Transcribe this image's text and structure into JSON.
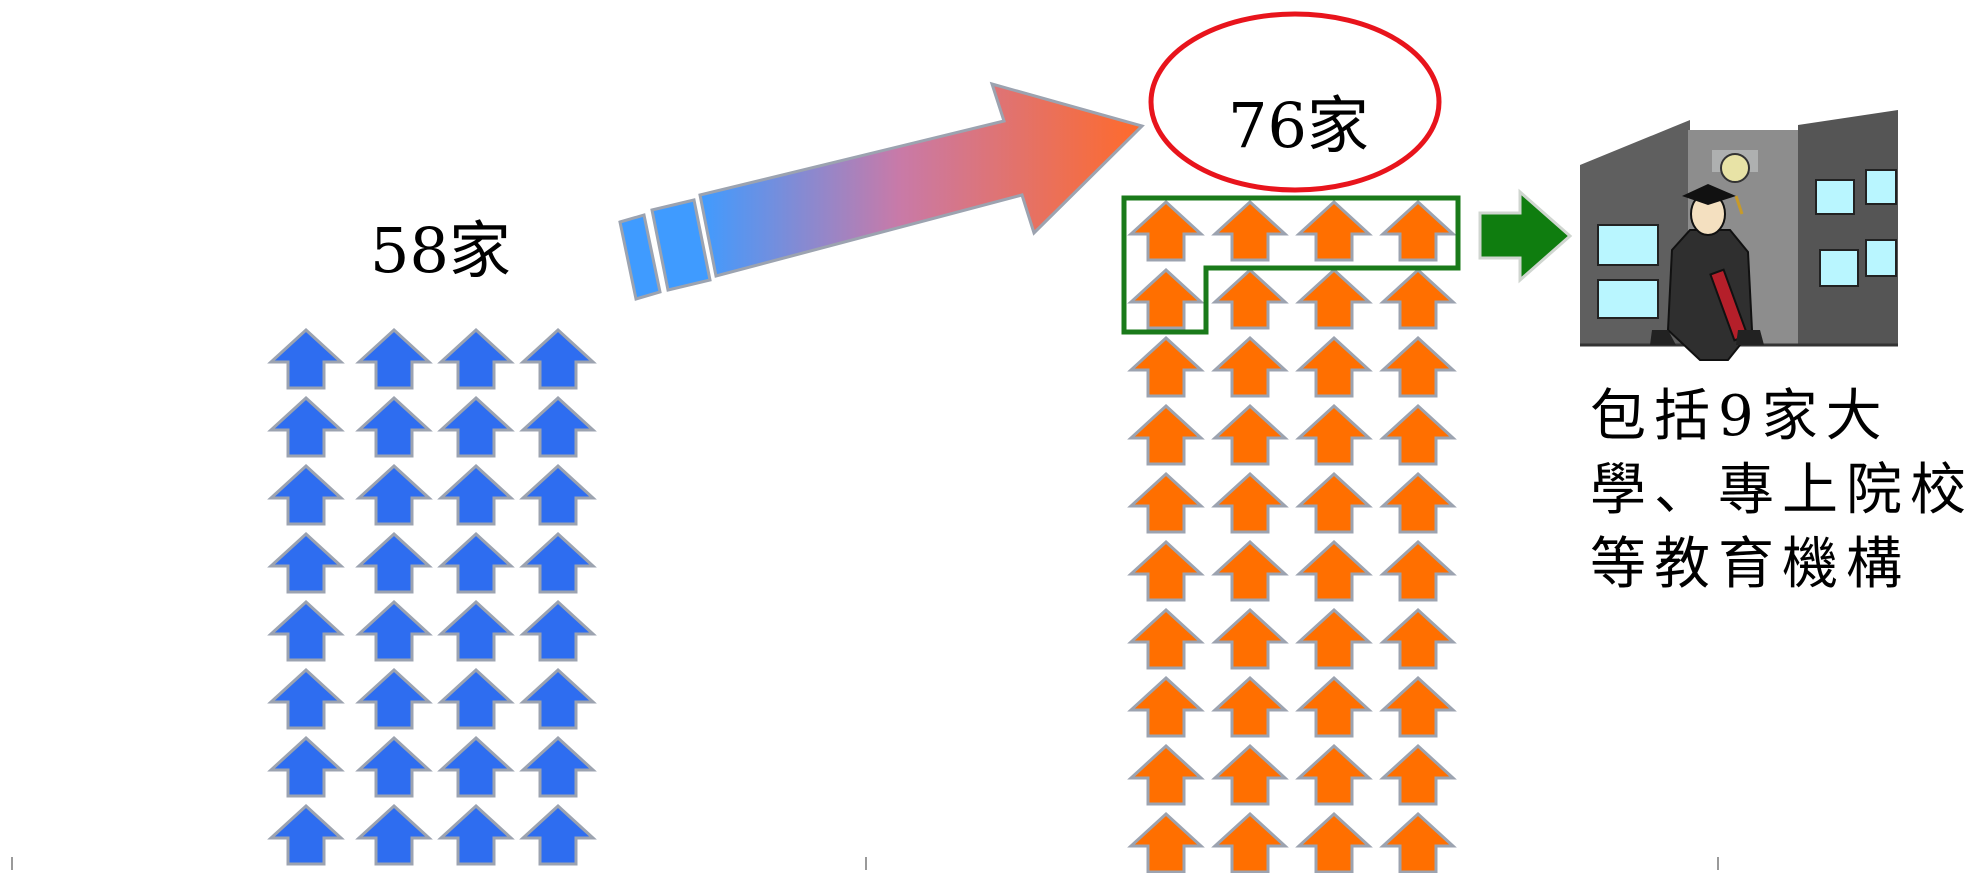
{
  "before": {
    "label": "58家",
    "count": 58,
    "color": "#2e6df0"
  },
  "after": {
    "label": "76家",
    "count": 76,
    "color": "#ff6f00",
    "highlighted_count": 5,
    "highlight_color": "#1a7a1a",
    "callout_color": "#e8141c"
  },
  "note": {
    "lines": [
      "包括9家大",
      "學、專上院校",
      "等教育機構"
    ]
  },
  "icons": {
    "growth_arrow": "gradient-arrow-icon",
    "pointer_arrow": "green-right-arrow-icon",
    "building": "school-building-with-graduate-icon"
  }
}
